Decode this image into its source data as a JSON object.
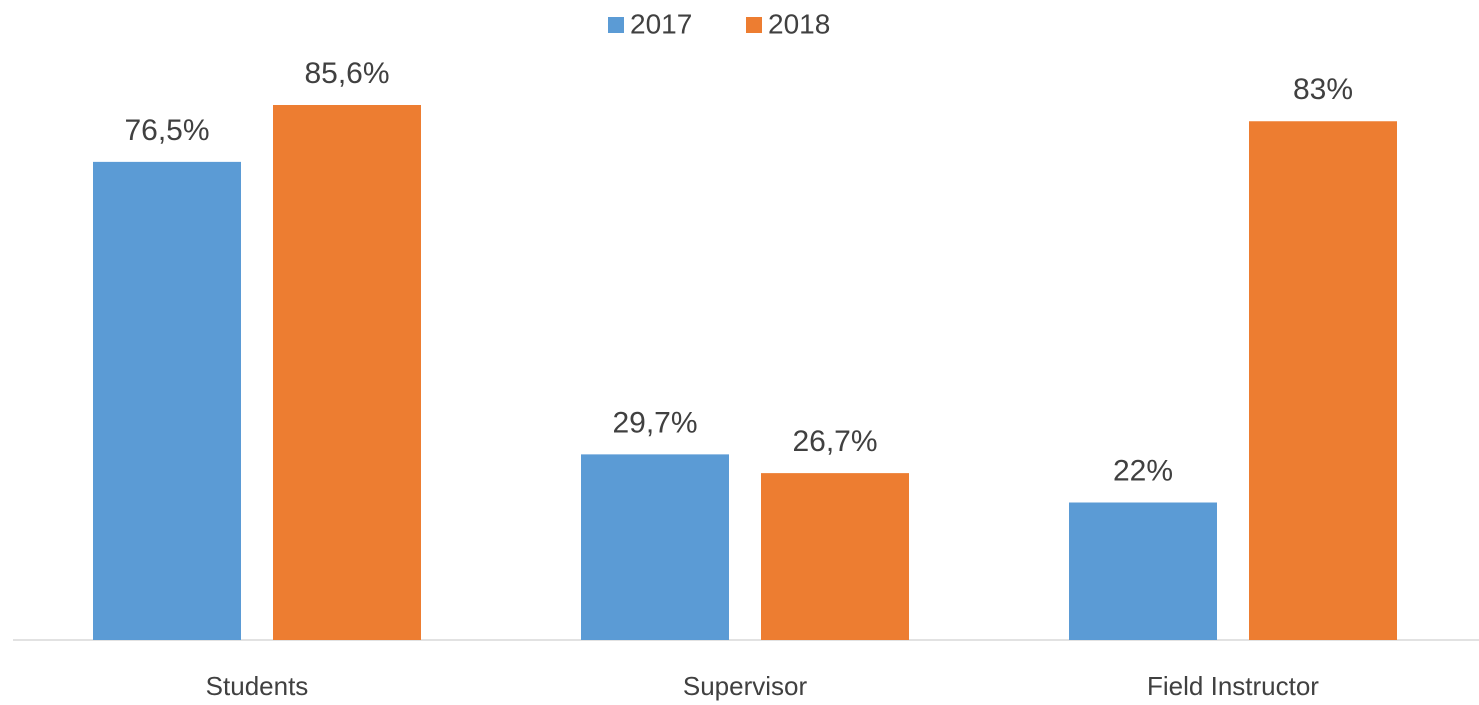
{
  "chart_data": {
    "type": "bar",
    "categories": [
      "Students",
      "Supervisor",
      "Field Instructor"
    ],
    "series": [
      {
        "name": "2017",
        "color": "#5b9bd5",
        "values": [
          76.5,
          29.7,
          22
        ],
        "value_labels": [
          "76,5%",
          "29,7%",
          "22%"
        ]
      },
      {
        "name": "2018",
        "color": "#ed7d31",
        "values": [
          85.6,
          26.7,
          83
        ],
        "value_labels": [
          "85,6%",
          "26,7%",
          "83%"
        ]
      }
    ],
    "legend": "top"
  }
}
